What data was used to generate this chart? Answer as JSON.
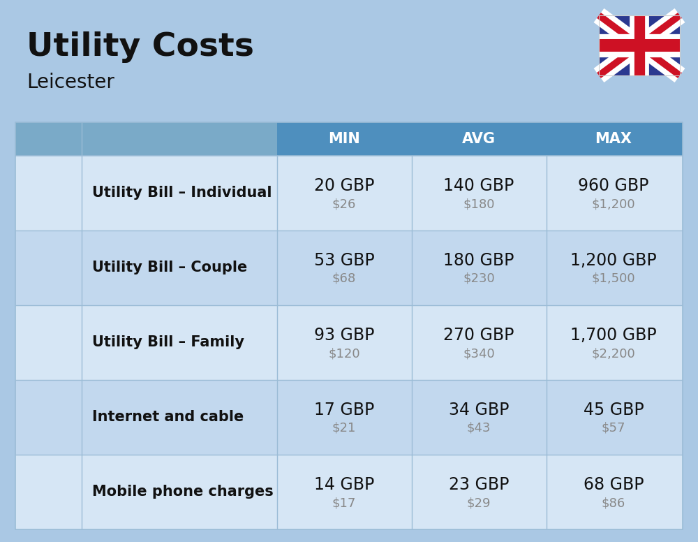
{
  "title": "Utility Costs",
  "subtitle": "Leicester",
  "background_color": "#aac8e4",
  "header_color": "#4e8fbe",
  "header_text_color": "#ffffff",
  "row_color_odd": "#d6e6f5",
  "row_color_even": "#c2d8ee",
  "divider_color": "#9bbcd6",
  "col_headers": [
    "MIN",
    "AVG",
    "MAX"
  ],
  "rows": [
    {
      "label": "Utility Bill – Individual",
      "min_gbp": "20 GBP",
      "min_usd": "$26",
      "avg_gbp": "140 GBP",
      "avg_usd": "$180",
      "max_gbp": "960 GBP",
      "max_usd": "$1,200"
    },
    {
      "label": "Utility Bill – Couple",
      "min_gbp": "53 GBP",
      "min_usd": "$68",
      "avg_gbp": "180 GBP",
      "avg_usd": "$230",
      "max_gbp": "1,200 GBP",
      "max_usd": "$1,500"
    },
    {
      "label": "Utility Bill – Family",
      "min_gbp": "93 GBP",
      "min_usd": "$120",
      "avg_gbp": "270 GBP",
      "avg_usd": "$340",
      "max_gbp": "1,700 GBP",
      "max_usd": "$2,200"
    },
    {
      "label": "Internet and cable",
      "min_gbp": "17 GBP",
      "min_usd": "$21",
      "avg_gbp": "34 GBP",
      "avg_usd": "$43",
      "max_gbp": "45 GBP",
      "max_usd": "$57"
    },
    {
      "label": "Mobile phone charges",
      "min_gbp": "14 GBP",
      "min_usd": "$17",
      "avg_gbp": "23 GBP",
      "avg_usd": "$29",
      "max_gbp": "68 GBP",
      "max_usd": "$86"
    }
  ],
  "title_fontsize": 34,
  "subtitle_fontsize": 20,
  "header_fontsize": 15,
  "label_fontsize": 15,
  "value_fontsize": 17,
  "usd_fontsize": 13,
  "flag_blue": "#2b3990",
  "flag_red": "#ce1124",
  "flag_white": "#ffffff"
}
